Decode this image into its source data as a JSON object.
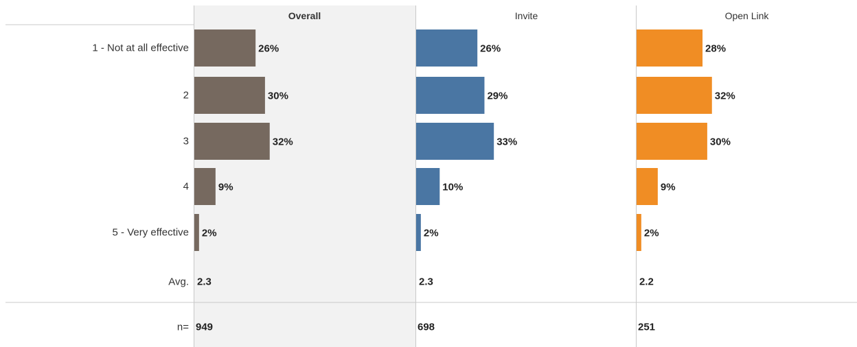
{
  "chart_data": {
    "type": "bar",
    "orientation": "horizontal",
    "categories": [
      "1 - Not at all effective",
      "2",
      "3",
      "4",
      "5 - Very effective"
    ],
    "unit": "%",
    "series": [
      {
        "name": "Overall",
        "values": [
          26,
          30,
          32,
          9,
          2
        ],
        "avg": "2.3",
        "n": "949",
        "color": "#76695f"
      },
      {
        "name": "Invite",
        "values": [
          26,
          29,
          33,
          10,
          2
        ],
        "avg": "2.3",
        "n": "698",
        "color": "#4a76a3"
      },
      {
        "name": "Open Link",
        "values": [
          28,
          32,
          30,
          9,
          2
        ],
        "avg": "2.2",
        "n": "251",
        "color": "#f08d24"
      }
    ],
    "avg_label": "Avg.",
    "n_label": "n=",
    "highlighted_panel": "Overall",
    "highlight_color": "#f2f2f2",
    "divider_color": "#c8c8c8"
  }
}
